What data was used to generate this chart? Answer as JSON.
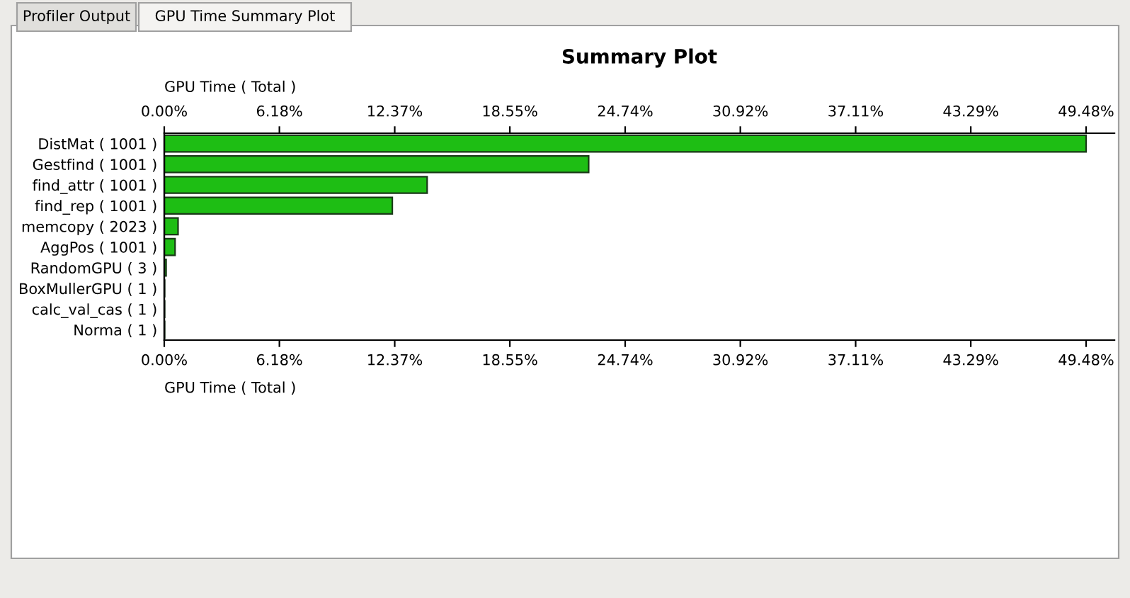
{
  "chart_data": {
    "type": "bar",
    "orientation": "horizontal",
    "title": "Summary Plot",
    "xlabel": "GPU Time ( Total )",
    "x2label": "GPU Time ( Total )",
    "categories": [
      "DistMat ( 1001 )",
      "Gestfind ( 1001 )",
      "find_attr ( 1001 )",
      "find_rep ( 1001 )",
      "memcopy ( 2023 )",
      "AggPos ( 1001 )",
      "RandomGPU ( 3 )",
      "BoxMullerGPU ( 1 )",
      "calc_val_cas ( 1 )",
      "Norma ( 1 )"
    ],
    "values": [
      49.48,
      22.78,
      14.11,
      12.24,
      0.74,
      0.58,
      0.1,
      0.02,
      0.02,
      0.02
    ],
    "color": "#1ebe14",
    "xlim": [
      0,
      51.0
    ],
    "x2lim": [
      0,
      51.0
    ],
    "xticks": [
      {
        "value": 0,
        "label": "0.00%"
      },
      {
        "value": 6.18,
        "label": "6.18%"
      },
      {
        "value": 12.37,
        "label": "12.37%"
      },
      {
        "value": 18.55,
        "label": "18.55%"
      },
      {
        "value": 24.74,
        "label": "24.74%"
      },
      {
        "value": 30.92,
        "label": "30.92%"
      },
      {
        "value": 37.11,
        "label": "37.11%"
      },
      {
        "value": 43.29,
        "label": "43.29%"
      },
      {
        "value": 49.48,
        "label": "49.48%"
      }
    ],
    "x2ticks": [
      {
        "value": 0,
        "label": "0.00%"
      },
      {
        "value": 6.18,
        "label": "6.18%"
      },
      {
        "value": 12.37,
        "label": "12.37%"
      },
      {
        "value": 18.55,
        "label": "18.55%"
      },
      {
        "value": 24.74,
        "label": "24.74%"
      },
      {
        "value": 30.92,
        "label": "30.92%"
      },
      {
        "value": 37.11,
        "label": "37.11%"
      },
      {
        "value": 43.29,
        "label": "43.29%"
      },
      {
        "value": 49.48,
        "label": "49.48%"
      }
    ],
    "annotations": [
      "Profiler Output",
      "GPU Time Summary Plot"
    ]
  }
}
